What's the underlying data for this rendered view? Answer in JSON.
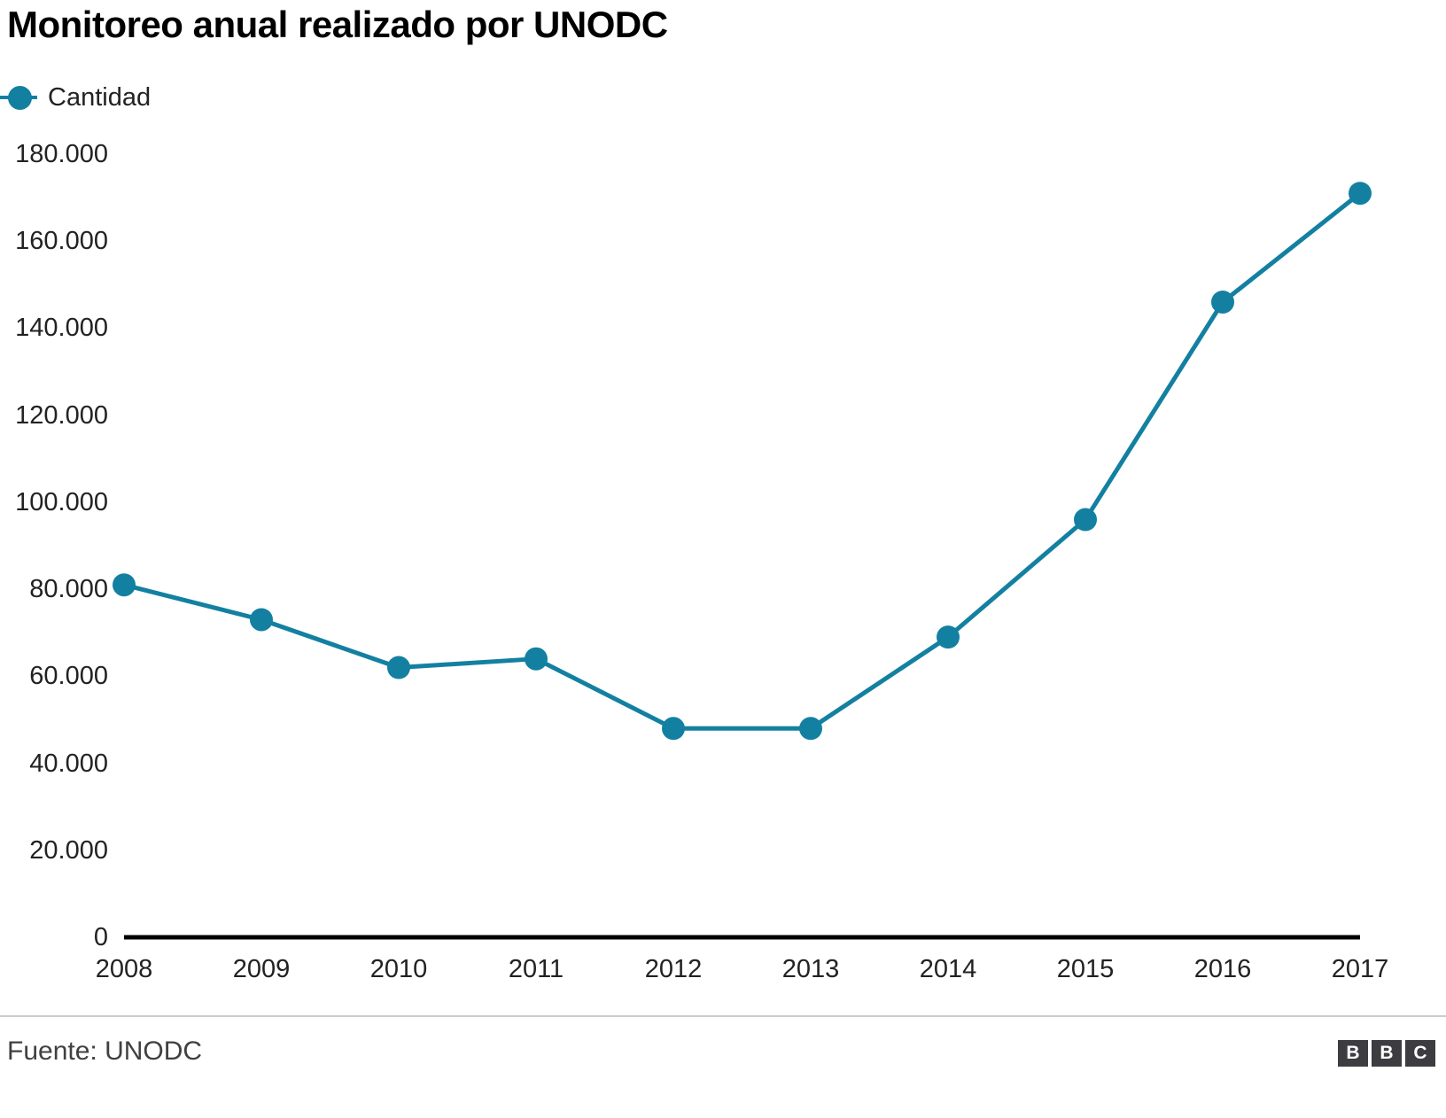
{
  "title": "Monitoreo anual realizado por UNODC",
  "legend": {
    "label": "Cantidad"
  },
  "footer": {
    "source": "Fuente: UNODC",
    "logo_letters": [
      "B",
      "B",
      "C"
    ]
  },
  "colors": {
    "accent": "#1380a1",
    "axis": "#000000",
    "divider": "#cccccc",
    "footer_text": "#404040",
    "logo_bg": "#3d3d41"
  },
  "chart_data": {
    "type": "line",
    "title": "Monitoreo anual realizado por UNODC",
    "series_name": "Cantidad",
    "categories": [
      "2008",
      "2009",
      "2010",
      "2011",
      "2012",
      "2013",
      "2014",
      "2015",
      "2016",
      "2017"
    ],
    "values": [
      81000,
      73000,
      62000,
      64000,
      48000,
      48000,
      69000,
      96000,
      146000,
      171000
    ],
    "xlabel": "",
    "ylabel": "",
    "ylim": [
      0,
      180000
    ],
    "y_ticks": {
      "values": [
        0,
        20000,
        40000,
        60000,
        80000,
        100000,
        120000,
        140000,
        160000,
        180000
      ],
      "labels": [
        "0",
        "20.000",
        "40.000",
        "60.000",
        "80.000",
        "100.000",
        "120.000",
        "140.000",
        "160.000",
        "180.000"
      ]
    },
    "grid": false,
    "legend_position": "top-left",
    "source": "Fuente: UNODC"
  }
}
